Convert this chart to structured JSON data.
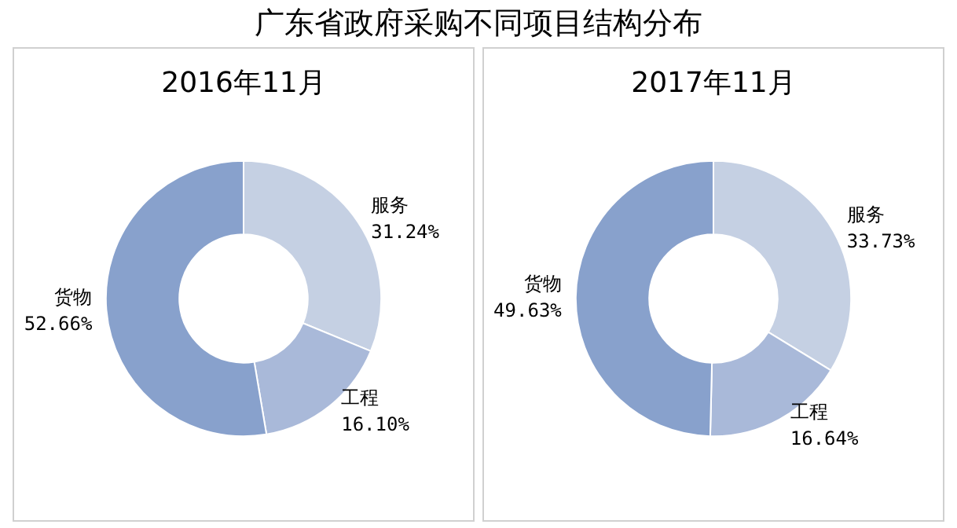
{
  "chart_data": [
    {
      "type": "donut",
      "title": "广东省政府采购不同项目结构分布",
      "subtitle": "2016年11月",
      "categories": [
        "服务",
        "工程",
        "货物"
      ],
      "values": [
        31.24,
        16.1,
        52.66
      ],
      "colors": [
        "#c5d0e3",
        "#a9b9d9",
        "#88a1cc"
      ],
      "value_labels": [
        "31.24%",
        "16.10%",
        "52.66%"
      ]
    },
    {
      "type": "donut",
      "subtitle": "2017年11月",
      "categories": [
        "服务",
        "工程",
        "货物"
      ],
      "values": [
        33.73,
        16.64,
        49.63
      ],
      "colors": [
        "#c5d0e3",
        "#a9b9d9",
        "#88a1cc"
      ],
      "value_labels": [
        "33.73%",
        "16.64%",
        "49.63%"
      ]
    }
  ]
}
